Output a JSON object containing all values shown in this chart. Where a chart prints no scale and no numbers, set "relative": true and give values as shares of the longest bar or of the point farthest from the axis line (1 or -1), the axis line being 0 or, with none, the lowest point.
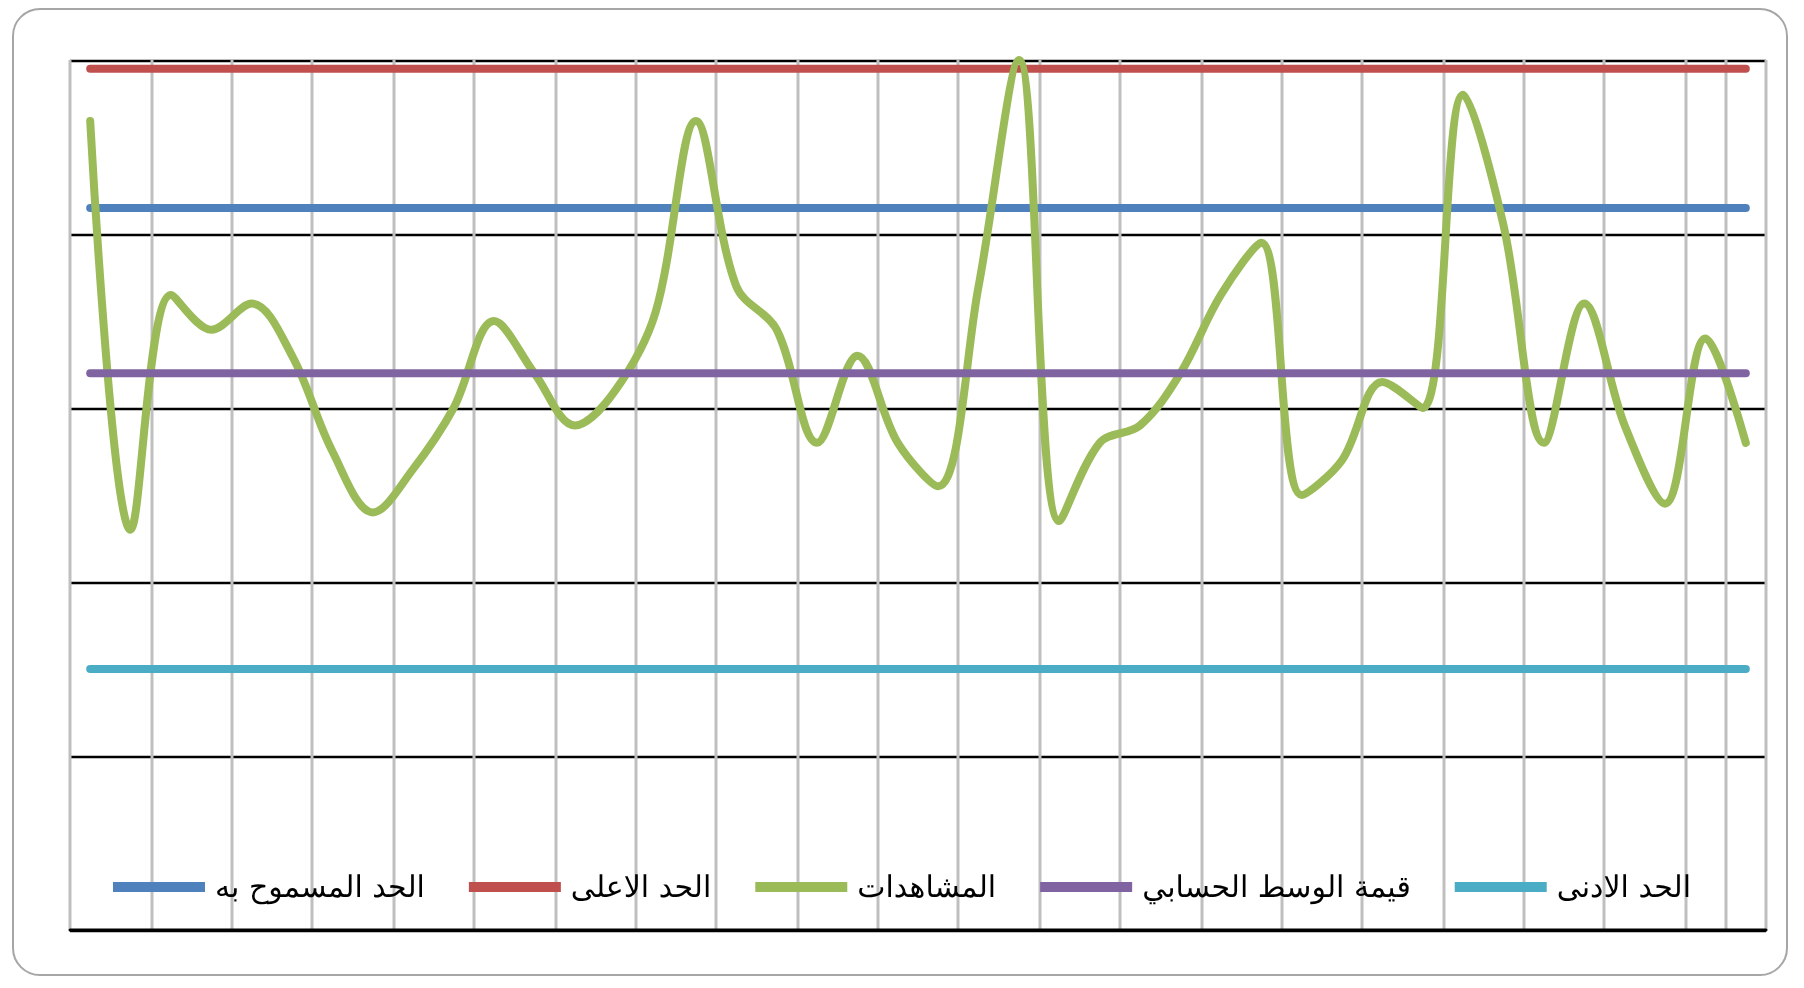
{
  "chart_data": {
    "type": "line",
    "relative": true,
    "categories": [
      null,
      null,
      null,
      null,
      null,
      null,
      null,
      null,
      null,
      null,
      null,
      null,
      null,
      null,
      null,
      null,
      null,
      null,
      null,
      null,
      null,
      null,
      null,
      null,
      null,
      null,
      null,
      null,
      null,
      null,
      null,
      null,
      null,
      null,
      null,
      null,
      null,
      null,
      null,
      null,
      null,
      null
    ],
    "series": [
      {
        "name": "الحد المسموح به",
        "color": "#4f81bd",
        "values": [
          0.83,
          0.83,
          0.83,
          0.83,
          0.83,
          0.83,
          0.83,
          0.83,
          0.83,
          0.83,
          0.83,
          0.83,
          0.83,
          0.83,
          0.83,
          0.83,
          0.83,
          0.83,
          0.83,
          0.83,
          0.83,
          0.83,
          0.83,
          0.83,
          0.83,
          0.83,
          0.83,
          0.83,
          0.83,
          0.83,
          0.83,
          0.83,
          0.83,
          0.83,
          0.83,
          0.83,
          0.83,
          0.83,
          0.83,
          0.83,
          0.83,
          0.83
        ]
      },
      {
        "name": "الحد الاعلى",
        "color": "#c0504d",
        "values": [
          0.99,
          0.99,
          0.99,
          0.99,
          0.99,
          0.99,
          0.99,
          0.99,
          0.99,
          0.99,
          0.99,
          0.99,
          0.99,
          0.99,
          0.99,
          0.99,
          0.99,
          0.99,
          0.99,
          0.99,
          0.99,
          0.99,
          0.99,
          0.99,
          0.99,
          0.99,
          0.99,
          0.99,
          0.99,
          0.99,
          0.99,
          0.99,
          0.99,
          0.99,
          0.99,
          0.99,
          0.99,
          0.99,
          0.99,
          0.99,
          0.99,
          0.99
        ]
      },
      {
        "name": "المشاهدات",
        "color": "#9bbb59",
        "values": [
          0.93,
          0.46,
          0.73,
          0.69,
          0.72,
          0.66,
          0.55,
          0.48,
          0.53,
          0.6,
          0.7,
          0.64,
          0.58,
          0.62,
          0.71,
          0.93,
          0.74,
          0.69,
          0.56,
          0.66,
          0.56,
          0.51,
          0.74,
          1,
          0.47,
          0.56,
          0.58,
          0.64,
          0.73,
          0.79,
          0.5,
          0.54,
          0.63,
          0.6,
          0.96,
          0.81,
          0.56,
          0.72,
          0.58,
          0.49,
          0.68,
          0.56
        ]
      },
      {
        "name": "قيمة الوسط الحسابي",
        "color": "#8064a2",
        "values": [
          0.64,
          0.64,
          0.64,
          0.64,
          0.64,
          0.64,
          0.64,
          0.64,
          0.64,
          0.64,
          0.64,
          0.64,
          0.64,
          0.64,
          0.64,
          0.64,
          0.64,
          0.64,
          0.64,
          0.64,
          0.64,
          0.64,
          0.64,
          0.64,
          0.64,
          0.64,
          0.64,
          0.64,
          0.64,
          0.64,
          0.64,
          0.64,
          0.64,
          0.64,
          0.64,
          0.64,
          0.64,
          0.64,
          0.64,
          0.64,
          0.64,
          0.64
        ]
      },
      {
        "name": "الحد الادنى",
        "color": "#4bacc6",
        "values": [
          0.3,
          0.3,
          0.3,
          0.3,
          0.3,
          0.3,
          0.3,
          0.3,
          0.3,
          0.3,
          0.3,
          0.3,
          0.3,
          0.3,
          0.3,
          0.3,
          0.3,
          0.3,
          0.3,
          0.3,
          0.3,
          0.3,
          0.3,
          0.3,
          0.3,
          0.3,
          0.3,
          0.3,
          0.3,
          0.3,
          0.3,
          0.3,
          0.3,
          0.3,
          0.3,
          0.3,
          0.3,
          0.3,
          0.3,
          0.3,
          0.3,
          0.3
        ]
      }
    ],
    "grid": true,
    "legend": "bottom",
    "marker": "none",
    "line_style": "solid"
  }
}
